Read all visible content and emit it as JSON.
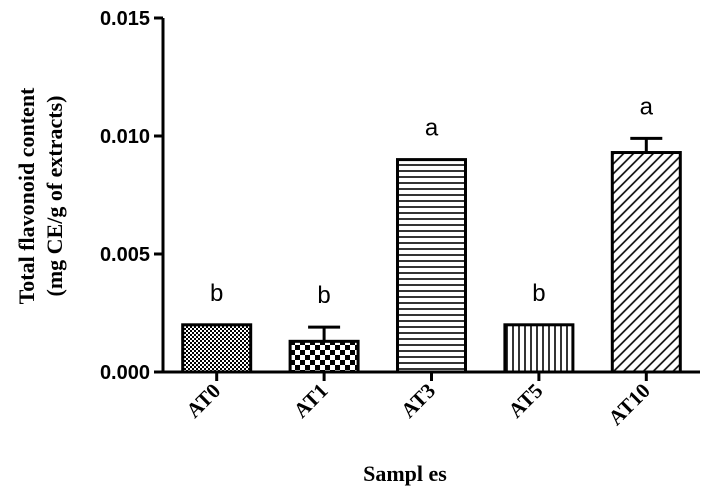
{
  "chart_data": {
    "type": "bar",
    "categories": [
      "AT0",
      "AT1",
      "AT3",
      "AT5",
      "AT10"
    ],
    "values": [
      0.002,
      0.0013,
      0.009,
      0.002,
      0.0093
    ],
    "errors": [
      0.0,
      0.0006,
      0.0,
      0.0,
      0.0006
    ],
    "significance": [
      "b",
      "b",
      "a",
      "b",
      "a"
    ],
    "patterns": [
      "dots",
      "checker",
      "horizontal",
      "vertical",
      "diagonal"
    ],
    "ylabel_line1": "Total flavonoid content",
    "ylabel_line2": "(mg CE/g of extracts)",
    "xlabel": "Sampl es",
    "ylim": [
      0,
      0.015
    ],
    "yticks": [
      0.0,
      0.005,
      0.01,
      0.015
    ],
    "ytick_labels": [
      "0.000",
      "0.005",
      "0.010",
      "0.015"
    ],
    "grid": false,
    "colors": {
      "bar_fill": "#ffffff",
      "pattern": "#000000",
      "axis": "#000000"
    }
  }
}
